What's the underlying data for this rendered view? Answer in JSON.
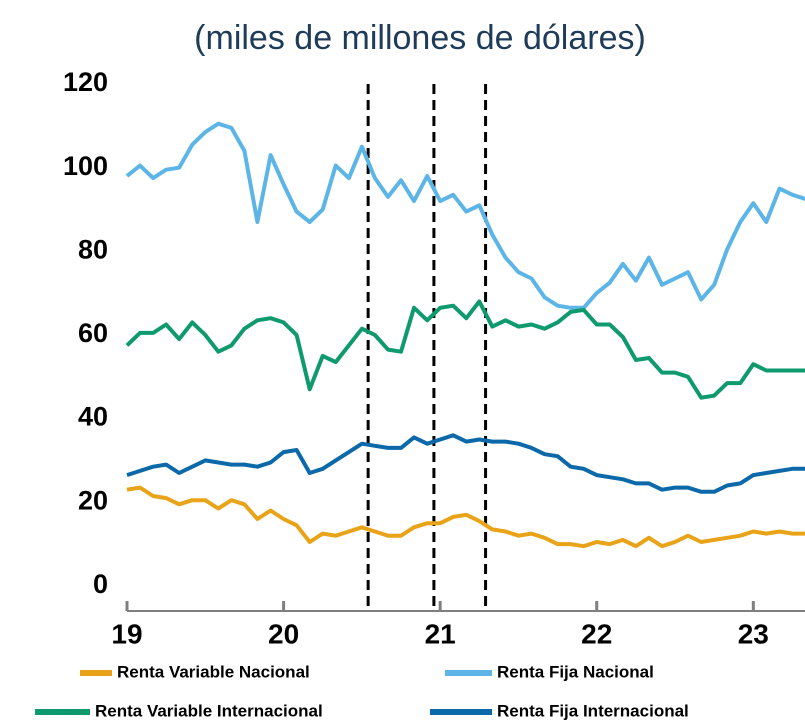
{
  "chart_data": {
    "type": "line",
    "title": "(miles de millones de dólares)",
    "x": [
      19,
      19.083,
      19.167,
      19.25,
      19.333,
      19.417,
      19.5,
      19.583,
      19.667,
      19.75,
      19.833,
      19.917,
      20,
      20.083,
      20.167,
      20.25,
      20.333,
      20.417,
      20.5,
      20.583,
      20.667,
      20.75,
      20.833,
      20.917,
      21,
      21.083,
      21.167,
      21.25,
      21.333,
      21.417,
      21.5,
      21.583,
      21.667,
      21.75,
      21.833,
      21.917,
      22,
      22.083,
      22.167,
      22.25,
      22.333,
      22.417,
      22.5,
      22.583,
      22.667,
      22.75,
      22.833,
      22.917,
      23,
      23.083,
      23.167,
      23.25,
      23.333
    ],
    "series": [
      {
        "name": "Renta Variable Nacional",
        "color": "#e9a318",
        "legend_col": 0,
        "values": [
          23,
          23.5,
          21.5,
          21,
          19.5,
          20.5,
          20.5,
          18.5,
          20.5,
          19.5,
          16,
          18,
          16,
          14.5,
          10.5,
          12.5,
          12,
          13,
          14,
          13,
          12,
          12,
          14,
          15,
          15,
          16.5,
          17,
          15.5,
          13.5,
          13,
          12,
          12.5,
          11.5,
          10,
          10,
          9.5,
          10.5,
          10,
          11,
          9.5,
          11.5,
          9.5,
          10.5,
          12,
          10.5,
          11,
          11.5,
          12,
          13,
          12.5,
          13,
          12.5,
          12.5
        ]
      },
      {
        "name": "Renta Fija Nacional",
        "color": "#5cb5e6",
        "legend_col": 1,
        "values": [
          98,
          100.5,
          97.5,
          99.5,
          100,
          105.5,
          108.5,
          110.5,
          109.5,
          104,
          87,
          103,
          96,
          89.5,
          87,
          90,
          100.5,
          97.5,
          105,
          97.5,
          93,
          97,
          92,
          98,
          92,
          93.5,
          89.5,
          91,
          84,
          78.5,
          75,
          73.5,
          69,
          67,
          66.5,
          66.5,
          70,
          72.5,
          77,
          73,
          78.5,
          72,
          73.5,
          75,
          68.5,
          72,
          80.5,
          87,
          91.5,
          87,
          95,
          93.5,
          92.5
        ]
      },
      {
        "name": "Renta Variable Internacional",
        "color": "#0e9a6c",
        "legend_col": 0,
        "values": [
          57.5,
          60.5,
          60.5,
          62.5,
          59,
          63,
          60,
          56,
          57.5,
          61.5,
          63.5,
          64,
          63,
          60,
          47,
          55,
          53.5,
          57.5,
          61.5,
          60,
          56.5,
          56,
          66.5,
          63.5,
          66.5,
          67,
          64,
          68,
          62,
          63.5,
          62,
          62.5,
          61.5,
          63,
          65.5,
          66,
          62.5,
          62.5,
          59.5,
          54,
          54.5,
          51,
          51,
          50,
          45,
          45.5,
          48.5,
          48.5,
          53,
          51.5,
          51.5,
          51.5,
          51.5
        ]
      },
      {
        "name": "Renta Fija Internacional",
        "color": "#0b68a9",
        "legend_col": 1,
        "values": [
          26.5,
          27.5,
          28.5,
          29,
          27,
          28.5,
          30,
          29.5,
          29,
          29,
          28.5,
          29.5,
          32,
          32.5,
          27,
          28,
          30,
          32,
          34,
          33.5,
          33,
          33,
          35.5,
          34,
          35,
          36,
          34.5,
          35,
          34.5,
          34.5,
          34,
          33,
          31.5,
          31,
          28.5,
          28,
          26.5,
          26,
          25.5,
          24.5,
          24.5,
          23,
          23.5,
          23.5,
          22.5,
          22.5,
          24,
          24.5,
          26.5,
          27,
          27.5,
          28,
          28
        ]
      }
    ],
    "vlines": [
      20.54,
      20.96,
      21.29
    ],
    "xlim": [
      19,
      23.33
    ],
    "xticks": [
      19,
      20,
      21,
      22,
      23
    ],
    "ylim": [
      -6,
      120
    ],
    "yticks": [
      0,
      20,
      40,
      60,
      80,
      100,
      120
    ]
  }
}
